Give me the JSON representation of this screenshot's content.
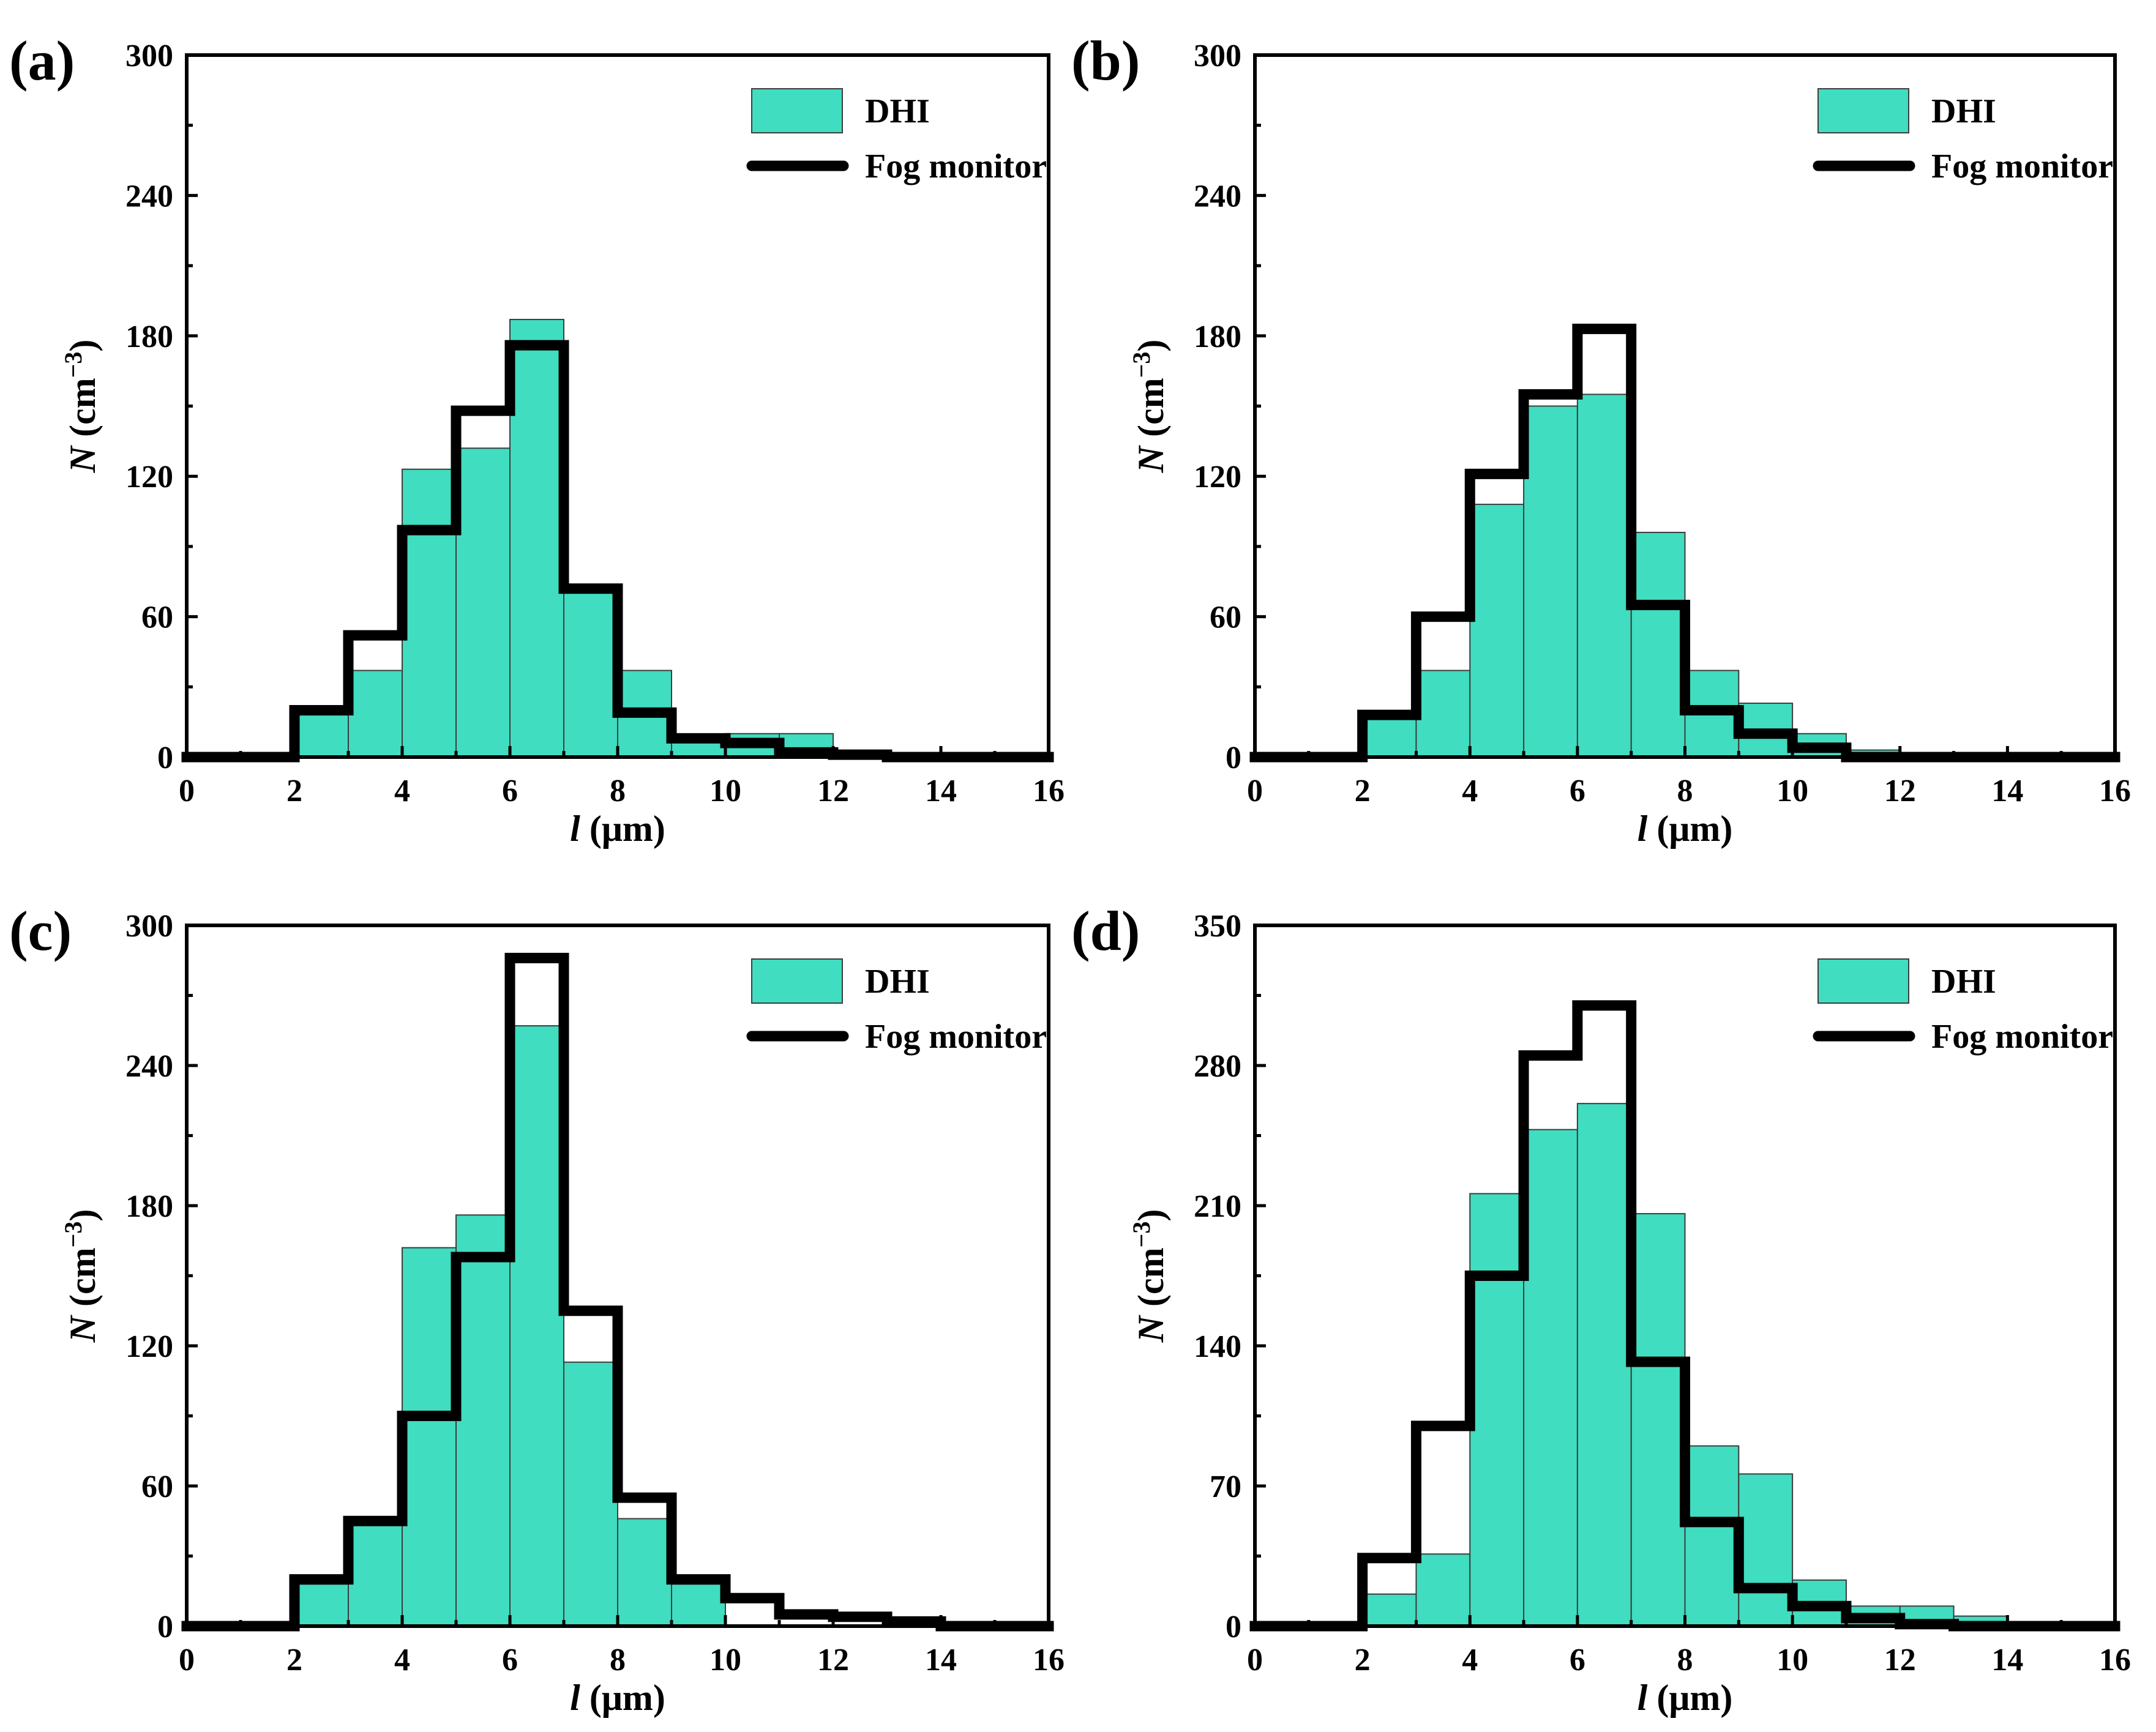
{
  "colors": {
    "dhi": "#40DDC0",
    "fog": "#000000"
  },
  "chart_data": [
    {
      "type": "bar",
      "label": "(a)",
      "xlabel_var": "l",
      "xlabel_unit": " (μm)",
      "ylabel_var": "N",
      "ylabel_unit": " (cm",
      "ylabel_exp": "−3",
      "ylabel_close": ")",
      "xlim": [
        0,
        16
      ],
      "ylim": [
        0,
        300
      ],
      "xticks": [
        0,
        2,
        4,
        6,
        8,
        10,
        12,
        14,
        16
      ],
      "yticks": [
        0,
        60,
        120,
        180,
        240,
        300
      ],
      "legend": {
        "position": "top-right",
        "dhi": "DHI",
        "fog": "Fog monitor"
      },
      "bins": [
        2,
        3,
        4,
        5,
        6,
        7,
        8,
        9,
        10,
        11,
        12,
        13
      ],
      "series": [
        {
          "name": "DHI",
          "values": [
            18,
            37,
            123,
            132,
            187,
            73,
            37,
            8,
            10,
            10,
            2,
            0
          ]
        },
        {
          "name": "Fog monitor",
          "values": [
            20,
            52,
            97,
            148,
            176,
            72,
            19,
            8,
            6,
            2,
            1,
            0
          ]
        }
      ]
    },
    {
      "type": "bar",
      "label": "(b)",
      "xlabel_var": "l",
      "xlabel_unit": " (μm)",
      "ylabel_var": "N",
      "ylabel_unit": " (cm",
      "ylabel_exp": "−3",
      "ylabel_close": ")",
      "xlim": [
        0,
        16
      ],
      "ylim": [
        0,
        300
      ],
      "xticks": [
        0,
        2,
        4,
        6,
        8,
        10,
        12,
        14,
        16
      ],
      "yticks": [
        0,
        60,
        120,
        180,
        240,
        300
      ],
      "legend": {
        "position": "top-right",
        "dhi": "DHI",
        "fog": "Fog monitor"
      },
      "bins": [
        2,
        3,
        4,
        5,
        6,
        7,
        8,
        9,
        10,
        11,
        12,
        13
      ],
      "series": [
        {
          "name": "DHI",
          "values": [
            18,
            37,
            108,
            150,
            155,
            96,
            37,
            23,
            10,
            3,
            0,
            0
          ]
        },
        {
          "name": "Fog monitor",
          "values": [
            18,
            60,
            121,
            155,
            183,
            65,
            20,
            10,
            4,
            0,
            0,
            0
          ]
        }
      ]
    },
    {
      "type": "bar",
      "label": "(c)",
      "xlabel_var": "l",
      "xlabel_unit": " (μm)",
      "ylabel_var": "N",
      "ylabel_unit": " (cm",
      "ylabel_exp": "−3",
      "ylabel_close": ")",
      "xlim": [
        0,
        16
      ],
      "ylim": [
        0,
        300
      ],
      "xticks": [
        0,
        2,
        4,
        6,
        8,
        10,
        12,
        14,
        16
      ],
      "yticks": [
        0,
        60,
        120,
        180,
        240,
        300
      ],
      "legend": {
        "position": "top-right",
        "dhi": "DHI",
        "fog": "Fog monitor"
      },
      "bins": [
        2,
        3,
        4,
        5,
        6,
        7,
        8,
        9,
        10,
        11,
        12,
        13
      ],
      "series": [
        {
          "name": "DHI",
          "values": [
            18,
            45,
            162,
            176,
            257,
            113,
            46,
            18,
            0,
            0,
            0,
            0
          ]
        },
        {
          "name": "Fog monitor",
          "values": [
            20,
            45,
            90,
            158,
            286,
            135,
            55,
            20,
            12,
            5,
            4,
            2
          ]
        }
      ]
    },
    {
      "type": "bar",
      "label": "(d)",
      "xlabel_var": "l",
      "xlabel_unit": " (μm)",
      "ylabel_var": "N",
      "ylabel_unit": " (cm",
      "ylabel_exp": "−3",
      "ylabel_close": ")",
      "xlim": [
        0,
        16
      ],
      "ylim": [
        0,
        350
      ],
      "xticks": [
        0,
        2,
        4,
        6,
        8,
        10,
        12,
        14,
        16
      ],
      "yticks": [
        0,
        70,
        140,
        210,
        280,
        350
      ],
      "legend": {
        "position": "top-right",
        "dhi": "DHI",
        "fog": "Fog monitor"
      },
      "bins": [
        2,
        3,
        4,
        5,
        6,
        7,
        8,
        9,
        10,
        11,
        12,
        13
      ],
      "series": [
        {
          "name": "DHI",
          "values": [
            16,
            36,
            216,
            248,
            261,
            206,
            90,
            76,
            23,
            10,
            10,
            5
          ]
        },
        {
          "name": "Fog monitor",
          "values": [
            34,
            100,
            175,
            285,
            310,
            132,
            52,
            19,
            10,
            4,
            1,
            0
          ]
        }
      ]
    }
  ]
}
